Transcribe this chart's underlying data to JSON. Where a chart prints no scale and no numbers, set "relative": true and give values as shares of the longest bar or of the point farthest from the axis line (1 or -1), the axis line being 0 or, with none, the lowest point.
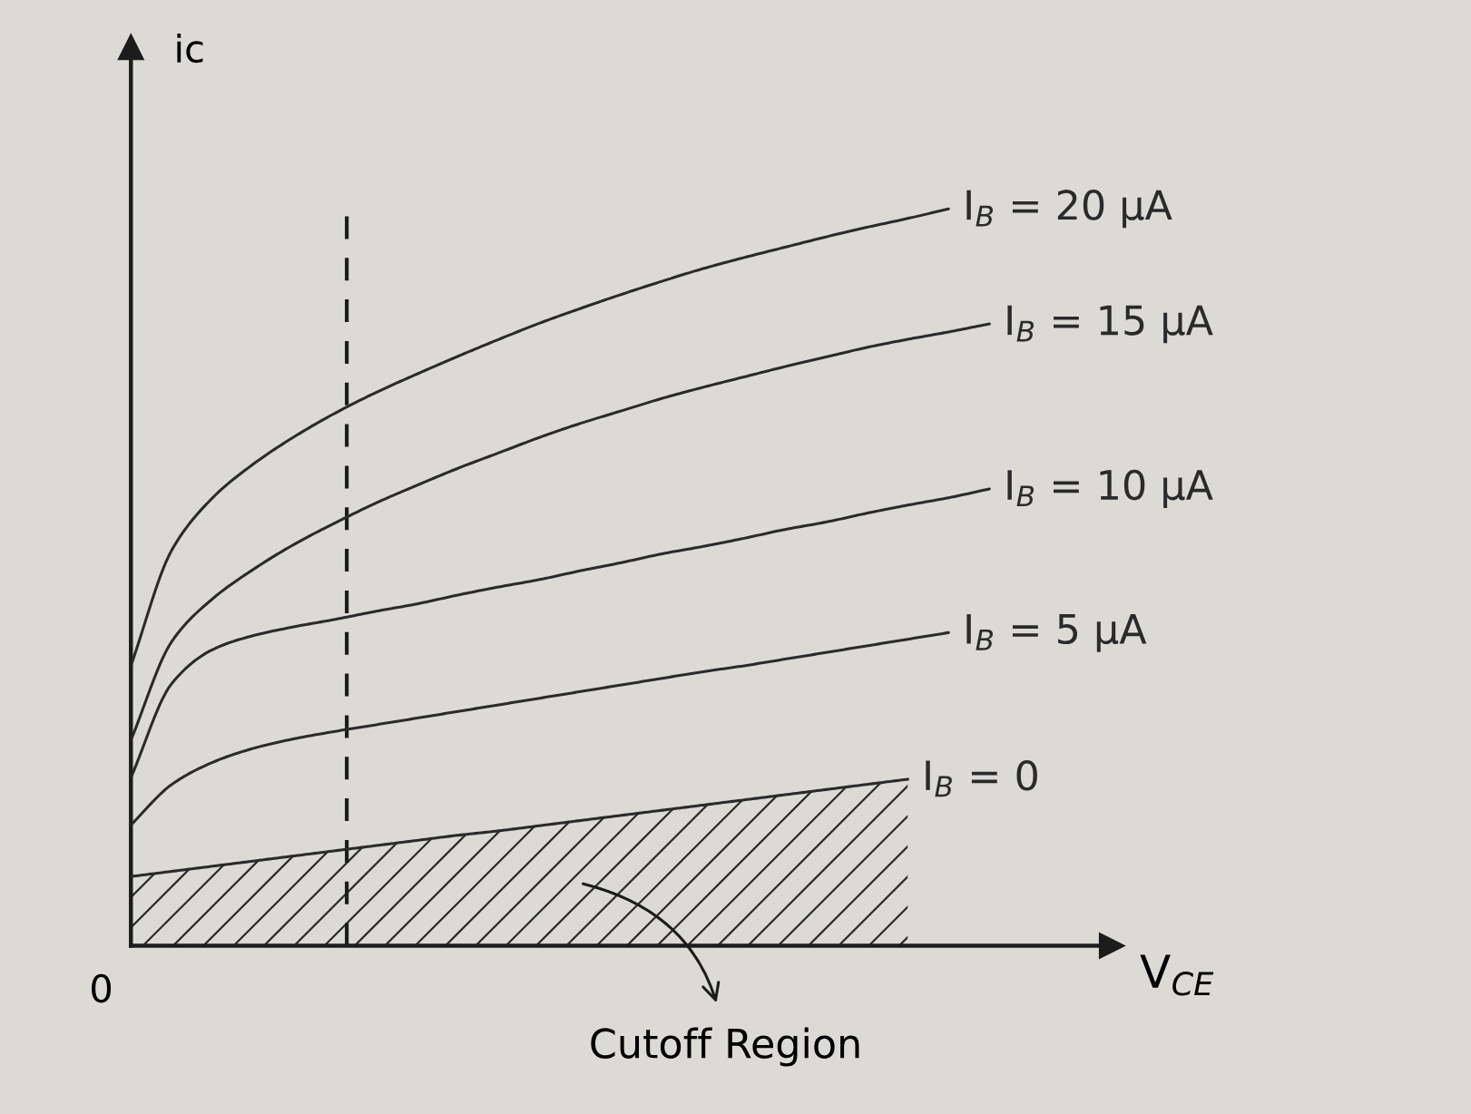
{
  "chart_data": {
    "type": "line",
    "relative": true,
    "xlabel": "V$_{CE}$",
    "ylabel": "ic",
    "categories": [
      null,
      null,
      null,
      null,
      null,
      null,
      null,
      null,
      null,
      null,
      null,
      null,
      null,
      null,
      null,
      null,
      null,
      null,
      null,
      null,
      null,
      null,
      null,
      null,
      null
    ],
    "series": [
      {
        "name": "I$_{B}$ = 20 μA",
        "color": "#2a2a2a",
        "values": [
          0.38,
          0.537,
          0.608,
          0.654,
          0.691,
          0.723,
          0.751,
          0.776,
          0.8,
          0.823,
          0.845,
          0.865,
          0.884,
          0.902,
          0.919,
          0.934,
          0.948,
          0.962,
          0.975,
          0.987,
          1.0,
          null,
          null,
          null,
          null
        ]
      },
      {
        "name": "I$_{B}$ = 15 μA",
        "color": "#2a2a2a",
        "values": [
          0.279,
          0.413,
          0.471,
          0.511,
          0.545,
          0.574,
          0.601,
          0.625,
          0.648,
          0.669,
          0.69,
          0.709,
          0.726,
          0.743,
          0.758,
          0.772,
          0.786,
          0.799,
          0.812,
          0.823,
          0.833,
          0.844,
          null,
          null,
          null
        ]
      },
      {
        "name": "I$_{B}$ = 10 μA",
        "color": "#2a2a2a",
        "values": [
          0.228,
          0.356,
          0.402,
          0.421,
          0.433,
          0.443,
          0.454,
          0.464,
          0.476,
          0.487,
          0.497,
          0.509,
          0.52,
          0.532,
          0.542,
          0.553,
          0.565,
          0.575,
          0.587,
          0.598,
          0.608,
          0.62,
          null,
          null,
          null
        ]
      },
      {
        "name": "I$_{B}$ = 5 μA",
        "color": "#2a2a2a",
        "values": [
          0.164,
          0.219,
          0.249,
          0.268,
          0.281,
          0.291,
          0.3,
          0.309,
          0.318,
          0.327,
          0.336,
          0.345,
          0.354,
          0.363,
          0.372,
          0.38,
          0.389,
          0.398,
          0.407,
          0.416,
          0.425,
          null,
          null,
          null,
          null
        ]
      },
      {
        "name": "I$_{B}$ = 0",
        "color": "#2a2a2a",
        "type": "area",
        "values": [
          0.094,
          0.101,
          0.108,
          0.115,
          0.122,
          0.129,
          0.136,
          0.143,
          0.15,
          0.156,
          0.163,
          0.17,
          0.177,
          0.184,
          0.191,
          0.198,
          0.205,
          0.212,
          0.219,
          0.226,
          null,
          null,
          null,
          null,
          null
        ]
      }
    ],
    "annotations": [
      "0",
      "Cutoff Region"
    ]
  }
}
